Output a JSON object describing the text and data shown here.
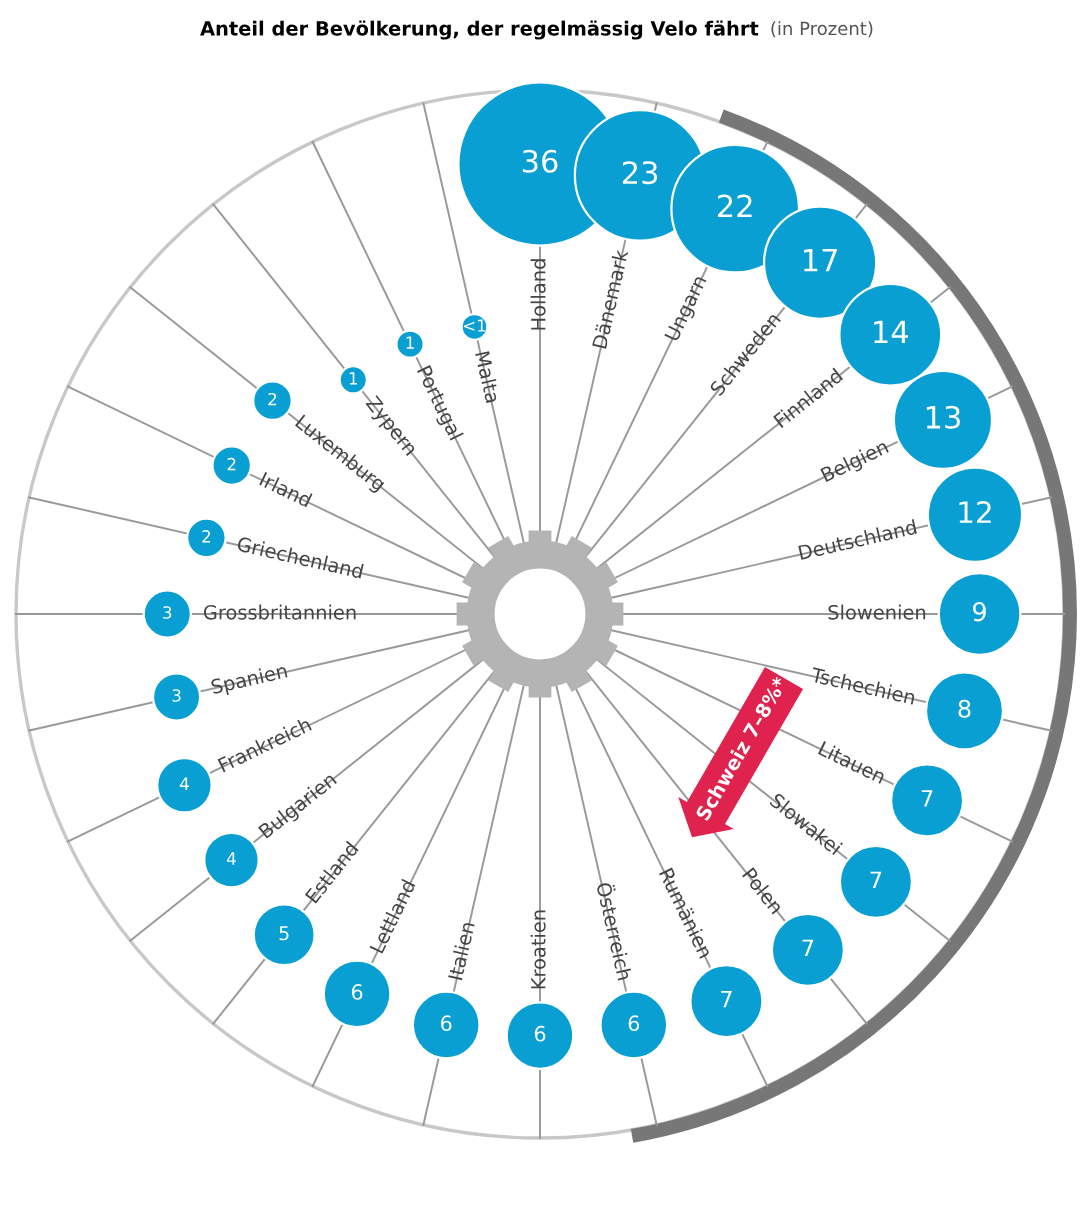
{
  "chart_data": {
    "type": "other",
    "title": "Anteil der Bevölkerung, der regelmässig Velo fährt",
    "subtitle": "(in Prozent)",
    "categories": [
      "Holland",
      "Dänemark",
      "Ungarn",
      "Schweden",
      "Finnland",
      "Belgien",
      "Deutschland",
      "Slowenien",
      "Tschechien",
      "Litauen",
      "Slowakei",
      "Polen",
      "Rumänien",
      "Österreich",
      "Kroatien",
      "Italien",
      "Lettland",
      "Estland",
      "Bulgarien",
      "Frankreich",
      "Spanien",
      "Grossbritannien",
      "Griechenland",
      "Irland",
      "Luxemburg",
      "Zypern",
      "Portugal",
      "Malta"
    ],
    "values": [
      36,
      23,
      22,
      17,
      14,
      13,
      12,
      9,
      8,
      7,
      7,
      7,
      7,
      6,
      6,
      6,
      6,
      5,
      4,
      4,
      3,
      3,
      2,
      2,
      2,
      1,
      1,
      null
    ],
    "value_labels": [
      "36",
      "23",
      "22",
      "17",
      "14",
      "13",
      "12",
      "9",
      "8",
      "7",
      "7",
      "7",
      "7",
      "6",
      "6",
      "6",
      "6",
      "5",
      "4",
      "4",
      "3",
      "3",
      "2",
      "2",
      "2",
      "1",
      "1",
      "<1"
    ],
    "color": "#0a9fd2",
    "annotations": [
      "Schweiz 7–8%*"
    ]
  }
}
